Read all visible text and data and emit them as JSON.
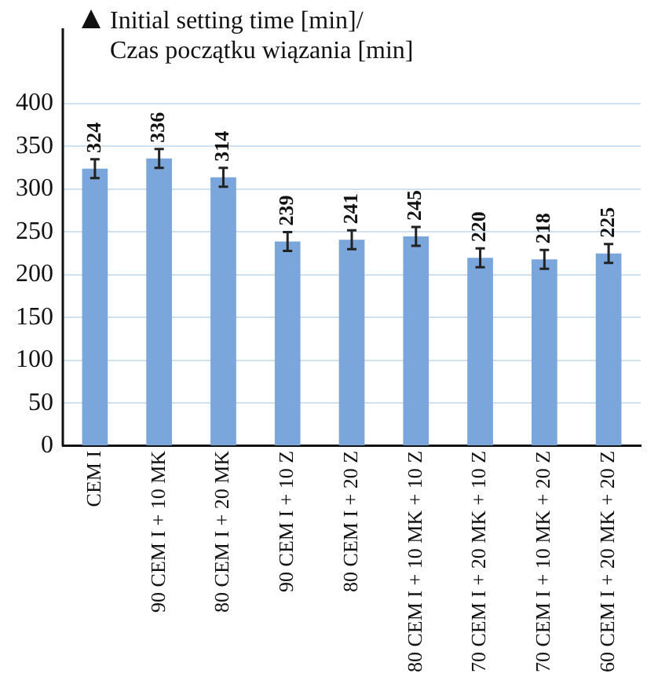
{
  "chart_data": {
    "type": "bar",
    "ylabel": "Initial setting time [min]/\nCzas początku wiązania [min]",
    "categories": [
      "CEM I",
      "90 CEM I + 10 MK",
      "80 CEM I + 20 MK",
      "90 CEM I + 10 Z",
      "80 CEM I + 20 Z",
      "80 CEM I + 10 MK + 10 Z",
      "70 CEM I + 20 MK + 10 Z",
      "70 CEM I + 10 MK + 20 Z",
      "60 CEM I + 20 MK + 20 Z"
    ],
    "values": [
      324,
      336,
      314,
      239,
      241,
      245,
      220,
      218,
      225
    ],
    "errors": [
      11,
      11,
      11,
      11,
      11,
      11,
      11,
      11,
      11
    ],
    "color": "#7aa6dc",
    "ylim": [
      0,
      400
    ],
    "yticks": [
      0,
      50,
      100,
      150,
      200,
      250,
      300,
      350,
      400
    ],
    "grid": "y",
    "data_labels": true
  }
}
